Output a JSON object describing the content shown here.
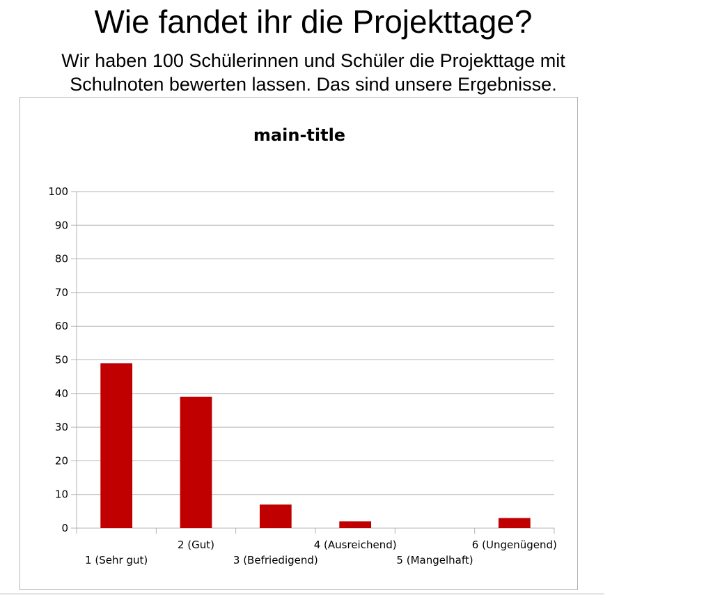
{
  "header": {
    "title": "Wie fandet ihr die Projekttage?",
    "subtitle_line1": "Wir haben 100 Schülerinnen und Schüler die Projekttage mit",
    "subtitle_line2": "Schulnoten bewerten lassen. Das sind unsere Ergebnisse."
  },
  "chart_data": {
    "type": "bar",
    "title": "main-title",
    "categories": [
      "1 (Sehr gut)",
      "2 (Gut)",
      "3 (Befriedigend)",
      "4 (Ausreichend)",
      "5 (Mangelhaft)",
      "6 (Ungenügend)"
    ],
    "values": [
      49,
      39,
      7,
      2,
      0,
      3
    ],
    "ylim": [
      0,
      100
    ],
    "yticks": [
      0,
      10,
      20,
      30,
      40,
      50,
      60,
      70,
      80,
      90,
      100
    ],
    "xlabel": "",
    "ylabel": "",
    "grid": true,
    "legend": "none",
    "bar_color": "#c00000"
  }
}
